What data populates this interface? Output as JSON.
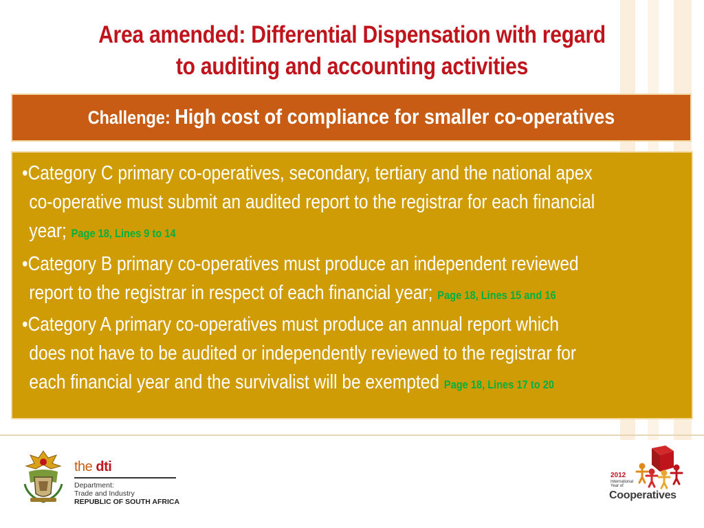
{
  "title": {
    "line1": "Area amended: Differential Dispensation with regard",
    "line2": "to auditing and  accounting activities"
  },
  "challenge": {
    "lead": "Challenge: ",
    "text": "High cost of compliance for smaller co-operatives"
  },
  "bullets": [
    {
      "lines": [
        "•Category C primary co-operatives, secondary, tertiary and the national apex",
        "co-operative must submit an audited report to the registrar for each financial",
        "year;"
      ],
      "ref": "Page 18, Lines 9 to 14"
    },
    {
      "lines": [
        "•Category B primary co-operatives must produce an independent reviewed",
        "report to the registrar in respect of each financial year;"
      ],
      "ref": "Page 18, Lines 15 and 16"
    },
    {
      "lines": [
        "•Category A primary co-operatives must produce an annual report which",
        "does not have to be audited or independently reviewed to the registrar for",
        "each financial year and the survivalist will be exempted"
      ],
      "ref": "Page 18, Lines 17 to 20"
    }
  ],
  "footer": {
    "dti": {
      "prefix": "the ",
      "name": "dti",
      "department": "Department:",
      "ministry": "Trade and Industry",
      "country": "REPUBLIC OF SOUTH AFRICA"
    },
    "coop": {
      "year": "2012",
      "line1": "International",
      "line2": "Year of",
      "word": "Cooperatives"
    }
  },
  "colors": {
    "title": "#c0141c",
    "challenge_bar": "#c85c14",
    "content_box": "#d09c06",
    "reference": "#00b140"
  },
  "icons": [
    "coat-of-arms-icon",
    "cooperatives-logo-icon"
  ]
}
